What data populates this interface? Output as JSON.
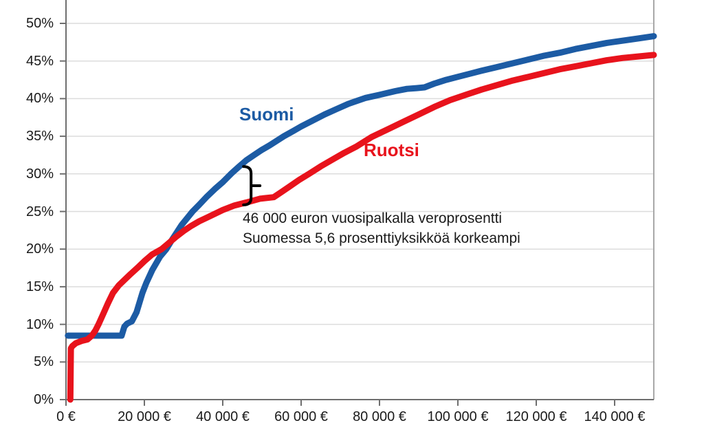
{
  "chart_data": {
    "type": "line",
    "title": "",
    "xlabel": "",
    "ylabel": "",
    "x_unit": "€",
    "y_unit": "%",
    "xlim": [
      0,
      150000
    ],
    "ylim": [
      0,
      53
    ],
    "grid": "horizontal",
    "legend_position": "inline-labels",
    "colors": {
      "suomi_blue": "#1c5ba4",
      "ruotsi_red": "#e8131c",
      "gridline": "#dcdcdc",
      "axis": "#6e6e6e",
      "plot_border": "#a8a8a8",
      "tick_text": "#1a1a1a",
      "brace": "#000000"
    },
    "x_ticks": [
      {
        "value": 0,
        "label": "0 €"
      },
      {
        "value": 20000,
        "label": "20 000 €"
      },
      {
        "value": 40000,
        "label": "40 000 €"
      },
      {
        "value": 60000,
        "label": "60 000 €"
      },
      {
        "value": 80000,
        "label": "80 000 €"
      },
      {
        "value": 100000,
        "label": "100 000 €"
      },
      {
        "value": 120000,
        "label": "120 000 €"
      },
      {
        "value": 140000,
        "label": "140 000 €"
      }
    ],
    "y_ticks": [
      {
        "value": 0,
        "label": "0%"
      },
      {
        "value": 5,
        "label": "5%"
      },
      {
        "value": 10,
        "label": "10%"
      },
      {
        "value": 15,
        "label": "15%"
      },
      {
        "value": 20,
        "label": "20%"
      },
      {
        "value": 25,
        "label": "25%"
      },
      {
        "value": 30,
        "label": "30%"
      },
      {
        "value": 35,
        "label": "35%"
      },
      {
        "value": 40,
        "label": "40%"
      },
      {
        "value": 45,
        "label": "45%"
      },
      {
        "value": 50,
        "label": "50%"
      }
    ],
    "series": [
      {
        "name": "Suomi",
        "color": "#1c5ba4",
        "points": [
          [
            500,
            8.5
          ],
          [
            6000,
            8.5
          ],
          [
            12000,
            8.5
          ],
          [
            14200,
            8.5
          ],
          [
            14900,
            9.7
          ],
          [
            15600,
            10.1
          ],
          [
            16800,
            10.4
          ],
          [
            18000,
            11.6
          ],
          [
            19500,
            14.2
          ],
          [
            20500,
            15.5
          ],
          [
            22000,
            17.2
          ],
          [
            24000,
            19.0
          ],
          [
            25600,
            20.0
          ],
          [
            27000,
            21.2
          ],
          [
            29500,
            23.2
          ],
          [
            32300,
            25.0
          ],
          [
            34000,
            25.9
          ],
          [
            36000,
            27.0
          ],
          [
            38000,
            28.0
          ],
          [
            40000,
            28.9
          ],
          [
            42300,
            30.1
          ],
          [
            44000,
            30.9
          ],
          [
            46000,
            31.8
          ],
          [
            48000,
            32.5
          ],
          [
            50000,
            33.2
          ],
          [
            52000,
            33.8
          ],
          [
            55600,
            35.0
          ],
          [
            58000,
            35.7
          ],
          [
            60000,
            36.3
          ],
          [
            63000,
            37.1
          ],
          [
            66000,
            37.9
          ],
          [
            69000,
            38.6
          ],
          [
            72000,
            39.3
          ],
          [
            76500,
            40.1
          ],
          [
            80000,
            40.5
          ],
          [
            84000,
            41.0
          ],
          [
            87000,
            41.3
          ],
          [
            89500,
            41.4
          ],
          [
            91500,
            41.5
          ],
          [
            94000,
            42.0
          ],
          [
            97000,
            42.5
          ],
          [
            100000,
            42.9
          ],
          [
            103000,
            43.3
          ],
          [
            106000,
            43.7
          ],
          [
            110000,
            44.2
          ],
          [
            114000,
            44.7
          ],
          [
            118000,
            45.2
          ],
          [
            122000,
            45.7
          ],
          [
            126000,
            46.1
          ],
          [
            130000,
            46.6
          ],
          [
            134000,
            47.0
          ],
          [
            138000,
            47.4
          ],
          [
            142000,
            47.7
          ],
          [
            146000,
            48.0
          ],
          [
            150000,
            48.3
          ]
        ]
      },
      {
        "name": "Ruotsi",
        "color": "#e8131c",
        "points": [
          [
            1100,
            0
          ],
          [
            1250,
            6.8
          ],
          [
            1600,
            7.1
          ],
          [
            2500,
            7.5
          ],
          [
            4000,
            7.8
          ],
          [
            5500,
            8.0
          ],
          [
            6600,
            8.5
          ],
          [
            7500,
            9.2
          ],
          [
            8300,
            10.0
          ],
          [
            9500,
            11.4
          ],
          [
            10700,
            12.8
          ],
          [
            12000,
            14.2
          ],
          [
            13500,
            15.2
          ],
          [
            14700,
            15.8
          ],
          [
            16500,
            16.7
          ],
          [
            18200,
            17.5
          ],
          [
            20000,
            18.4
          ],
          [
            22000,
            19.3
          ],
          [
            24400,
            20.0
          ],
          [
            26000,
            20.7
          ],
          [
            28000,
            21.6
          ],
          [
            30000,
            22.4
          ],
          [
            32000,
            23.1
          ],
          [
            34000,
            23.7
          ],
          [
            36000,
            24.2
          ],
          [
            38000,
            24.7
          ],
          [
            40000,
            25.2
          ],
          [
            43000,
            25.8
          ],
          [
            46000,
            26.2
          ],
          [
            49500,
            26.7
          ],
          [
            53000,
            26.9
          ],
          [
            55000,
            27.6
          ],
          [
            57000,
            28.3
          ],
          [
            59500,
            29.2
          ],
          [
            62000,
            30.0
          ],
          [
            65000,
            31.0
          ],
          [
            68000,
            31.9
          ],
          [
            71000,
            32.8
          ],
          [
            74000,
            33.6
          ],
          [
            78000,
            34.9
          ],
          [
            82000,
            35.9
          ],
          [
            86000,
            36.9
          ],
          [
            90000,
            37.9
          ],
          [
            94000,
            38.9
          ],
          [
            98000,
            39.8
          ],
          [
            102000,
            40.5
          ],
          [
            106000,
            41.2
          ],
          [
            110000,
            41.8
          ],
          [
            114000,
            42.4
          ],
          [
            118000,
            42.9
          ],
          [
            122000,
            43.4
          ],
          [
            126000,
            43.9
          ],
          [
            130000,
            44.3
          ],
          [
            134000,
            44.7
          ],
          [
            138000,
            45.1
          ],
          [
            142000,
            45.4
          ],
          [
            146000,
            45.6
          ],
          [
            150000,
            45.8
          ]
        ]
      }
    ],
    "annotation": {
      "line1": "46 000 euron vuosipalkalla veroprosentti",
      "line2": "Suomessa 5,6 prosenttiyksikköä korkeampi",
      "brace": {
        "x_value": 46000,
        "top_pct": 31.8,
        "bottom_pct": 26.2,
        "gap_pp": "5,6"
      }
    }
  }
}
